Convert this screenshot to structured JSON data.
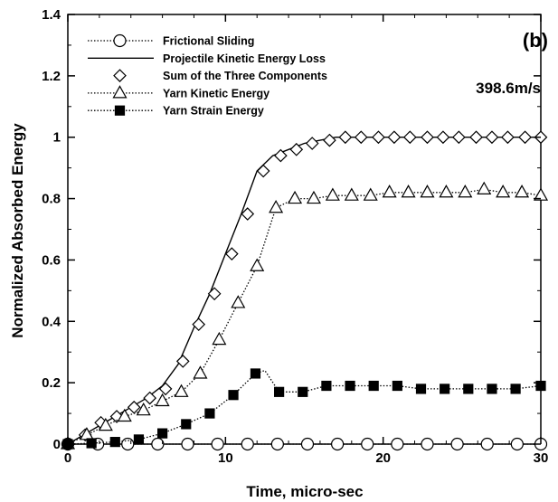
{
  "chart_data": {
    "type": "line",
    "panel_label": "(b)",
    "annotation": "398.6m/s",
    "xlabel": "Time, micro-sec",
    "ylabel": "Normalized Absorbed Energy",
    "xlim": [
      0,
      30
    ],
    "ylim": [
      0,
      1.4
    ],
    "xticks": [
      "0",
      "10",
      "20",
      "30"
    ],
    "yticks": [
      "0",
      "0.2",
      "0.4",
      "0.6",
      "0.8",
      "1",
      "1.2",
      "1.4"
    ],
    "grid": false,
    "legend_position": "top-left",
    "series": [
      {
        "name": "Frictional Sliding",
        "line": "dotted",
        "marker": "open-circle",
        "x": [
          0,
          1.9,
          3.8,
          5.7,
          7.6,
          9.5,
          11.4,
          13.3,
          15.2,
          17.1,
          19.0,
          20.9,
          22.8,
          24.7,
          26.6,
          28.5,
          30
        ],
        "y": [
          0,
          0,
          0,
          0,
          0,
          0,
          0,
          0,
          0,
          0,
          0,
          0,
          0,
          0,
          0,
          0,
          0
        ]
      },
      {
        "name": "Projectile Kinetic Energy Loss",
        "line": "solid",
        "marker": "none",
        "x": [
          0,
          1,
          2,
          3,
          4,
          5,
          6,
          7,
          8,
          9,
          10,
          11,
          12,
          13,
          14,
          15,
          16,
          17,
          18,
          19,
          20,
          22,
          24,
          26,
          28,
          30
        ],
        "y": [
          0,
          0.03,
          0.06,
          0.09,
          0.12,
          0.15,
          0.19,
          0.26,
          0.38,
          0.49,
          0.62,
          0.75,
          0.89,
          0.94,
          0.96,
          0.98,
          0.99,
          1.0,
          1.0,
          1.0,
          1.0,
          1.0,
          1.0,
          1.0,
          1.0,
          1.0
        ]
      },
      {
        "name": "Sum of the Three Components",
        "line": "none",
        "marker": "open-diamond",
        "x": [
          0,
          1.1,
          2.1,
          3.1,
          4.2,
          5.2,
          6.2,
          7.3,
          8.3,
          9.3,
          10.4,
          11.4,
          12.4,
          13.5,
          14.5,
          15.5,
          16.6,
          17.6,
          18.6,
          19.7,
          20.7,
          21.7,
          22.8,
          23.8,
          24.8,
          25.9,
          26.9,
          27.9,
          29.0,
          30
        ],
        "y": [
          0,
          0.03,
          0.07,
          0.09,
          0.12,
          0.15,
          0.18,
          0.27,
          0.39,
          0.49,
          0.62,
          0.75,
          0.89,
          0.94,
          0.96,
          0.98,
          0.99,
          1.0,
          1.0,
          1.0,
          1.0,
          1.0,
          1.0,
          1.0,
          1.0,
          1.0,
          1.0,
          1.0,
          1.0,
          1.0
        ]
      },
      {
        "name": "Yarn Kinetic Energy",
        "line": "dotted",
        "marker": "open-triangle",
        "x": [
          0,
          1.2,
          2.4,
          3.6,
          4.8,
          6.0,
          7.2,
          8.4,
          9.6,
          10.8,
          12.0,
          13.2,
          14.4,
          15.6,
          16.8,
          18.0,
          19.2,
          20.4,
          21.6,
          22.8,
          24.0,
          25.2,
          26.4,
          27.6,
          28.8,
          30
        ],
        "y": [
          0,
          0.03,
          0.06,
          0.09,
          0.11,
          0.14,
          0.17,
          0.23,
          0.34,
          0.46,
          0.58,
          0.77,
          0.8,
          0.8,
          0.81,
          0.81,
          0.81,
          0.82,
          0.82,
          0.82,
          0.82,
          0.82,
          0.83,
          0.82,
          0.82,
          0.81
        ]
      },
      {
        "name": "Yarn Strain Energy",
        "line": "dotted",
        "marker": "filled-square",
        "x": [
          0,
          1.5,
          3.0,
          4.5,
          6.0,
          7.5,
          9.0,
          10.5,
          11.9,
          12.5,
          13.4,
          14.9,
          16.4,
          17.9,
          19.4,
          20.9,
          22.4,
          23.9,
          25.4,
          26.9,
          28.4,
          30
        ],
        "y": [
          0,
          0.003,
          0.007,
          0.015,
          0.035,
          0.065,
          0.1,
          0.16,
          0.23,
          0.24,
          0.17,
          0.17,
          0.19,
          0.19,
          0.19,
          0.19,
          0.18,
          0.18,
          0.18,
          0.18,
          0.18,
          0.19
        ],
        "marker_indices": [
          0,
          1,
          2,
          3,
          4,
          5,
          6,
          7,
          8,
          10,
          11,
          12,
          13,
          14,
          15,
          16,
          17,
          18,
          19,
          20,
          21
        ]
      }
    ]
  }
}
